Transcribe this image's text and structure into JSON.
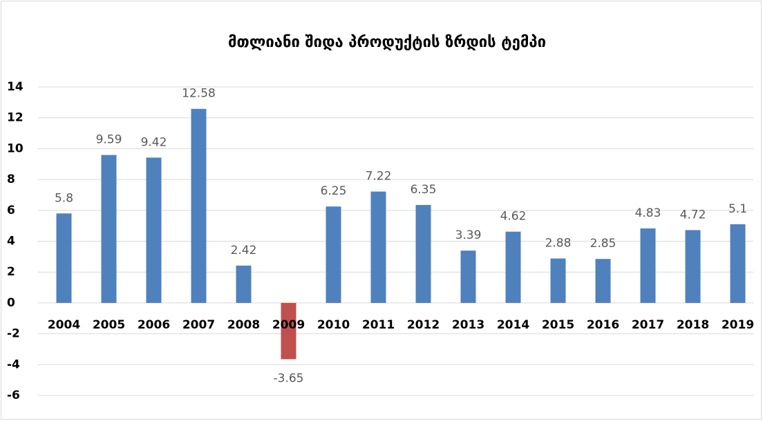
{
  "chart_data": {
    "type": "bar",
    "title": "მთლიანი შიდა პროდუქტის ზრდის ტემპი",
    "categories": [
      "2004",
      "2005",
      "2006",
      "2007",
      "2008",
      "2009",
      "2010",
      "2011",
      "2012",
      "2013",
      "2014",
      "2015",
      "2016",
      "2017",
      "2018",
      "2019"
    ],
    "values": [
      5.8,
      9.59,
      9.42,
      12.58,
      2.42,
      -3.65,
      6.25,
      7.22,
      6.35,
      3.39,
      4.62,
      2.88,
      2.85,
      4.83,
      4.72,
      5.1
    ],
    "colors": [
      "#4f81bd",
      "#4f81bd",
      "#4f81bd",
      "#4f81bd",
      "#4f81bd",
      "#c0504d",
      "#4f81bd",
      "#4f81bd",
      "#4f81bd",
      "#4f81bd",
      "#4f81bd",
      "#4f81bd",
      "#4f81bd",
      "#4f81bd",
      "#4f81bd",
      "#4f81bd"
    ],
    "ylim": [
      -6,
      14
    ],
    "yticks": [
      -6,
      -4,
      -2,
      0,
      2,
      4,
      6,
      8,
      10,
      12,
      14
    ],
    "grid": true
  }
}
